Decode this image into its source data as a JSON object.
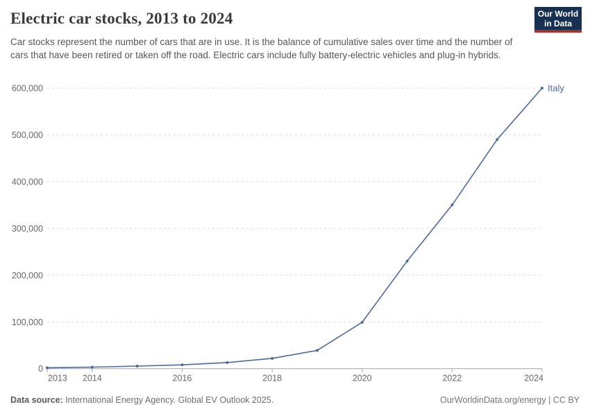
{
  "header": {
    "title": "Electric car stocks, 2013 to 2024",
    "subtitle": "Car stocks represent the number of cars that are in use. It is the balance of cumulative sales over time and the number of cars that have been retired or taken off the road. Electric cars include fully battery-electric vehicles and plug-in hybrids.",
    "logo": {
      "line1": "Our World",
      "line2": "in Data",
      "bg_color": "#18304f",
      "accent_color": "#a63229"
    }
  },
  "chart_data": {
    "type": "line",
    "title": "Electric car stocks, 2013 to 2024",
    "xlabel": "",
    "ylabel": "",
    "xlim": [
      2013,
      2024
    ],
    "ylim": [
      0,
      600000
    ],
    "grid": "horizontal-dashed",
    "legend_position": "end-of-line",
    "x": [
      2013,
      2014,
      2015,
      2016,
      2017,
      2018,
      2019,
      2020,
      2021,
      2022,
      2023,
      2024
    ],
    "series": [
      {
        "name": "Italy",
        "color": "#4c6a9c",
        "values": [
          2000,
          3300,
          5500,
          8100,
          13000,
          22000,
          39000,
          99000,
          230000,
          350000,
          490000,
          600000
        ]
      }
    ],
    "x_tick_labels": [
      2013,
      2014,
      2016,
      2018,
      2020,
      2022,
      2024
    ],
    "y_ticks": [
      0,
      100000,
      200000,
      300000,
      400000,
      500000,
      600000
    ],
    "y_tick_labels": [
      "0",
      "100,000",
      "200,000",
      "300,000",
      "400,000",
      "500,000",
      "600,000"
    ]
  },
  "footer": {
    "datasource_label": "Data source:",
    "datasource_text": " International Energy Agency. Global EV Outlook 2025.",
    "rights": "OurWorldinData.org/energy | CC BY"
  },
  "colors": {
    "line": "#4c6a9c",
    "grid": "#d9d9d9",
    "axis": "#a3a3a3",
    "tick_text": "#666666",
    "title_text": "#3a3a3a",
    "subtitle_text": "#565656"
  }
}
